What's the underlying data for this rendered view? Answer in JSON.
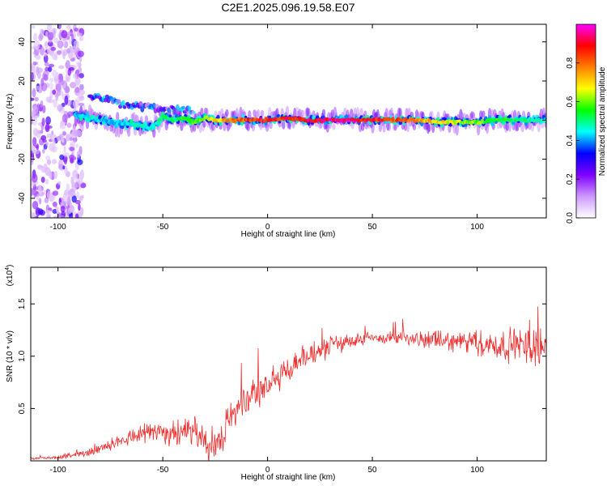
{
  "title": "C2E1.2025.096.19.58.E07",
  "chart_data": [
    {
      "type": "heatmap",
      "xlabel": "Height of straight line (km)",
      "ylabel": "Frequency (Hz)",
      "xlim": [
        -113,
        133
      ],
      "ylim": [
        -50,
        49
      ],
      "xticks": [
        -100,
        -50,
        0,
        50,
        100
      ],
      "yticks": [
        -40,
        -20,
        0,
        20,
        40
      ],
      "grid": false,
      "colorbar": {
        "label": "Normalized spectral amplitude",
        "range": [
          0,
          1
        ],
        "ticks": [
          "0.0",
          "0.2",
          "0.4",
          "0.6",
          "0.8"
        ],
        "colors": [
          "#ffffff",
          "#cc99ff",
          "#7f00ff",
          "#0000ff",
          "#00ffff",
          "#00ff00",
          "#ffff00",
          "#ff8000",
          "#ff0000",
          "#ff00ff"
        ]
      },
      "ridge": {
        "x": [
          -92,
          -85,
          -80,
          -75,
          -70,
          -65,
          -60,
          -55,
          -50,
          -45,
          -40,
          -35,
          -30,
          -25,
          -20,
          -10,
          0,
          10,
          20,
          30,
          40,
          50,
          60,
          70,
          80,
          90,
          100,
          110,
          120,
          130
        ],
        "frequency": [
          3,
          1,
          0,
          -1,
          -2,
          -2,
          -3,
          -4,
          2,
          0,
          1,
          -1,
          1,
          0,
          0,
          0,
          0,
          1,
          0,
          0,
          0,
          0,
          0,
          0,
          -1,
          -1,
          -1,
          0,
          0,
          0
        ],
        "amplitude": [
          0.45,
          0.5,
          0.45,
          0.45,
          0.45,
          0.5,
          0.5,
          0.5,
          0.55,
          0.55,
          0.6,
          0.6,
          0.7,
          0.75,
          0.8,
          0.9,
          0.95,
          0.95,
          1.0,
          1.0,
          1.0,
          0.95,
          0.9,
          0.85,
          0.75,
          0.7,
          0.65,
          0.6,
          0.55,
          0.5
        ]
      },
      "upper_branch": {
        "x": [
          -85,
          -80,
          -75,
          -70,
          -60,
          -50,
          -40,
          -35
        ],
        "frequency": [
          11,
          12,
          10,
          8,
          7,
          6,
          5,
          4
        ]
      },
      "noise_region_x": [
        -113,
        -88
      ]
    },
    {
      "type": "line",
      "xlabel": "Height of straight line (km)",
      "ylabel": "SNR (10 * v/v)",
      "y_multiplier": "(x10^4)",
      "xlim": [
        -113,
        133
      ],
      "ylim": [
        0,
        1.85
      ],
      "xticks": [
        -100,
        -50,
        0,
        50,
        100
      ],
      "yticks": [
        0.5,
        1.0,
        1.5
      ],
      "ytick_labels": [
        "0.5",
        "1.0",
        "1.5"
      ],
      "color": "#ee3030",
      "series": [
        {
          "name": "",
          "x": [
            -113,
            -100,
            -90,
            -85,
            -80,
            -75,
            -70,
            -65,
            -60,
            -55,
            -50,
            -45,
            -40,
            -35,
            -30,
            -28,
            -25,
            -22,
            -20,
            -15,
            -10,
            -5,
            0,
            5,
            10,
            15,
            20,
            25,
            30,
            40,
            50,
            60,
            70,
            80,
            90,
            100,
            110,
            120,
            133
          ],
          "y": [
            0.02,
            0.03,
            0.06,
            0.08,
            0.12,
            0.16,
            0.2,
            0.24,
            0.27,
            0.28,
            0.28,
            0.26,
            0.25,
            0.25,
            0.22,
            0.05,
            0.15,
            0.25,
            0.35,
            0.45,
            0.55,
            0.65,
            0.72,
            0.8,
            0.88,
            0.95,
            1.0,
            1.05,
            1.1,
            1.15,
            1.17,
            1.18,
            1.16,
            1.15,
            1.14,
            1.12,
            1.1,
            1.1,
            1.1
          ]
        }
      ],
      "fluctuation": {
        "x": [
          -113,
          -80,
          -50,
          -25,
          0,
          30,
          60,
          90,
          110,
          133
        ],
        "amplitude": [
          0.01,
          0.05,
          0.15,
          0.2,
          0.2,
          0.12,
          0.07,
          0.12,
          0.18,
          0.25
        ]
      }
    }
  ]
}
